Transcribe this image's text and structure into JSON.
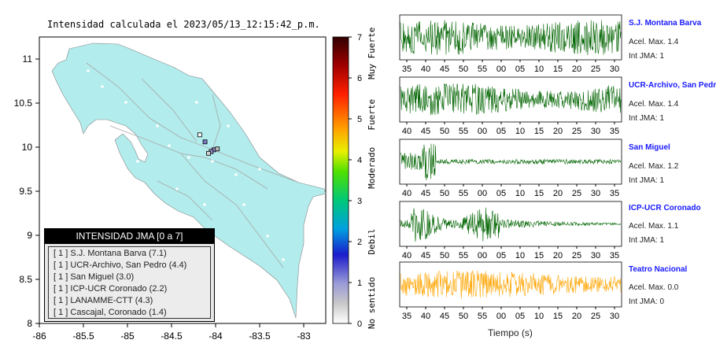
{
  "map": {
    "title": "Intensidad calculada el 2023/05/13_12:15:42_p.m.",
    "x_ticks": [
      "-86",
      "-85.5",
      "-85",
      "-84.5",
      "-84",
      "-83.5",
      "-83"
    ],
    "y_ticks": [
      "11",
      "10.5",
      "10",
      "9.5",
      "9",
      "8.5",
      "8"
    ],
    "land_color": "#b2ecec",
    "sea_color": "#ffffff"
  },
  "colorbar": {
    "ticks": [
      "0",
      "1",
      "2",
      "3",
      "4",
      "5",
      "6",
      "7"
    ],
    "labels": [
      "No sentido",
      "Debil",
      "Moderado",
      "Fuerte",
      "Muy Fuerte"
    ]
  },
  "legend": {
    "header": "INTENSIDAD JMA [0 a 7]",
    "rows": [
      "[ 1 ]  S.J. Montana Barva (7.1)",
      "[ 1 ]  UCR-Archivo, San Pedro (4.4)",
      "[ 1 ]  San Miguel (3.0)",
      "[ 1 ]  ICP-UCR Coronado (2.2)",
      "[ 1 ]  LANAMME-CTT (4.3)",
      "[ 1 ]  Cascajal, Coronado (1.4)"
    ]
  },
  "stations": [
    {
      "name": "S.J. Montana Barva",
      "acel": "Acel. Max. 1.4",
      "jma": "Int JMA: 1",
      "color": "#006400"
    },
    {
      "name": "UCR-Archivo, San Pedro",
      "acel": "Acel. Max. 1.4",
      "jma": "Int JMA: 1",
      "color": "#006400"
    },
    {
      "name": "San Miguel",
      "acel": "Acel. Max. 1.2",
      "jma": "Int JMA: 1",
      "color": "#006400"
    },
    {
      "name": "ICP-UCR Coronado",
      "acel": "Acel. Max. 1.1",
      "jma": "Int JMA: 1",
      "color": "#006400"
    },
    {
      "name": "Teatro Nacional",
      "acel": "Acel. Max. 0.0",
      "jma": "Int JMA: 0",
      "color": "#ffa500"
    }
  ],
  "xlabel": "Tiempo (s)",
  "chart_data": [
    {
      "type": "scatter",
      "title": "Intensidad calculada el 2023/05/13_12:15:42_p.m.",
      "xlim": [
        -86,
        -82.75
      ],
      "ylim": [
        8,
        11.25
      ],
      "points": [
        {
          "x": -84.18,
          "y": 10.14
        },
        {
          "x": -84.12,
          "y": 10.06
        },
        {
          "x": -84.02,
          "y": 9.97
        },
        {
          "x": -83.98,
          "y": 9.98
        },
        {
          "x": -84.05,
          "y": 9.95
        },
        {
          "x": -84.08,
          "y": 9.93
        }
      ]
    },
    {
      "type": "line",
      "title": "S.J. Montana Barva",
      "x_ticks": [
        "35",
        "40",
        "45",
        "50",
        "55",
        "00",
        "05",
        "10",
        "15",
        "20",
        "25",
        "30"
      ],
      "amplitude": 1.4
    },
    {
      "type": "line",
      "title": "UCR-Archivo, San Pedro",
      "x_ticks": [
        "40",
        "45",
        "50",
        "55",
        "00",
        "05",
        "10",
        "15",
        "20",
        "25",
        "30",
        "35"
      ],
      "amplitude": 1.4
    },
    {
      "type": "line",
      "title": "San Miguel",
      "x_ticks": [
        "40",
        "45",
        "50",
        "55",
        "00",
        "05",
        "10",
        "15",
        "20",
        "25",
        "30",
        "35"
      ],
      "amplitude": 1.2
    },
    {
      "type": "line",
      "title": "ICP-UCR Coronado",
      "x_ticks": [
        "40",
        "45",
        "50",
        "55",
        "00",
        "05",
        "10",
        "15",
        "20",
        "25",
        "30",
        "35"
      ],
      "amplitude": 1.1
    },
    {
      "type": "line",
      "title": "Teatro Nacional",
      "x_ticks": [
        "35",
        "40",
        "45",
        "50",
        "55",
        "00",
        "05",
        "10",
        "15",
        "20",
        "25",
        "30"
      ],
      "amplitude": 0.0
    }
  ]
}
